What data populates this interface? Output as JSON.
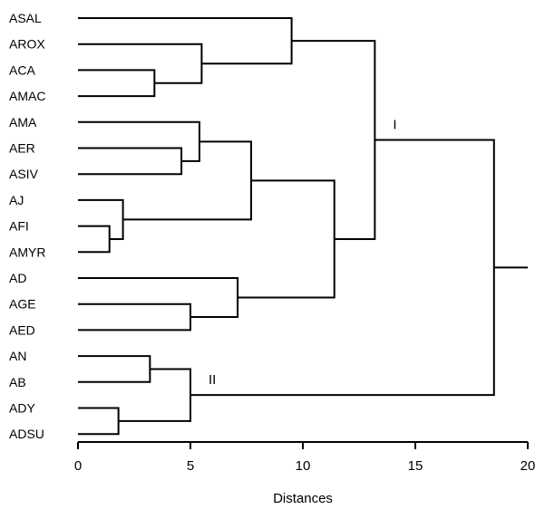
{
  "chart_data": {
    "type": "dendrogram",
    "xlabel": "Distances",
    "xlim": [
      0,
      20
    ],
    "xticks": [
      0,
      5,
      10,
      15,
      20
    ],
    "leaves": [
      "ASAL",
      "AROX",
      "ACA",
      "AMAC",
      "AMA",
      "AER",
      "ASIV",
      "AJ",
      "AFI",
      "AMYR",
      "AD",
      "AGE",
      "AED",
      "AN",
      "AB",
      "ADY",
      "ADSU"
    ],
    "merges": [
      {
        "id": "c1",
        "children": [
          "ACA",
          "AMAC"
        ],
        "height": 3.4
      },
      {
        "id": "c2",
        "children": [
          "AROX",
          "c1"
        ],
        "height": 5.5
      },
      {
        "id": "c3",
        "children": [
          "ASAL",
          "c2"
        ],
        "height": 9.5
      },
      {
        "id": "c4",
        "children": [
          "AER",
          "ASIV"
        ],
        "height": 4.6
      },
      {
        "id": "c5",
        "children": [
          "AMA",
          "c4"
        ],
        "height": 5.4
      },
      {
        "id": "c6",
        "children": [
          "AFI",
          "AMYR"
        ],
        "height": 1.4
      },
      {
        "id": "c7",
        "children": [
          "AJ",
          "c6"
        ],
        "height": 2.0
      },
      {
        "id": "c8",
        "children": [
          "c5",
          "c7"
        ],
        "height": 7.7
      },
      {
        "id": "c9",
        "children": [
          "AGE",
          "AED"
        ],
        "height": 5.0
      },
      {
        "id": "c10",
        "children": [
          "AD",
          "c9"
        ],
        "height": 7.1
      },
      {
        "id": "c11",
        "children": [
          "c8",
          "c10"
        ],
        "height": 11.4
      },
      {
        "id": "c12",
        "children": [
          "c3",
          "c11"
        ],
        "height": 13.2
      },
      {
        "id": "c13",
        "children": [
          "AN",
          "AB"
        ],
        "height": 3.2
      },
      {
        "id": "c14",
        "children": [
          "ADY",
          "ADSU"
        ],
        "height": 1.8
      },
      {
        "id": "c15",
        "children": [
          "c13",
          "c14"
        ],
        "height": 5.0
      },
      {
        "id": "c16",
        "children": [
          "c12",
          "c15"
        ],
        "height": 18.5
      }
    ],
    "root_extends_to": 20,
    "cluster_labels": [
      {
        "text": "I",
        "cluster": "c12"
      },
      {
        "text": "II",
        "cluster": "c15"
      }
    ]
  }
}
